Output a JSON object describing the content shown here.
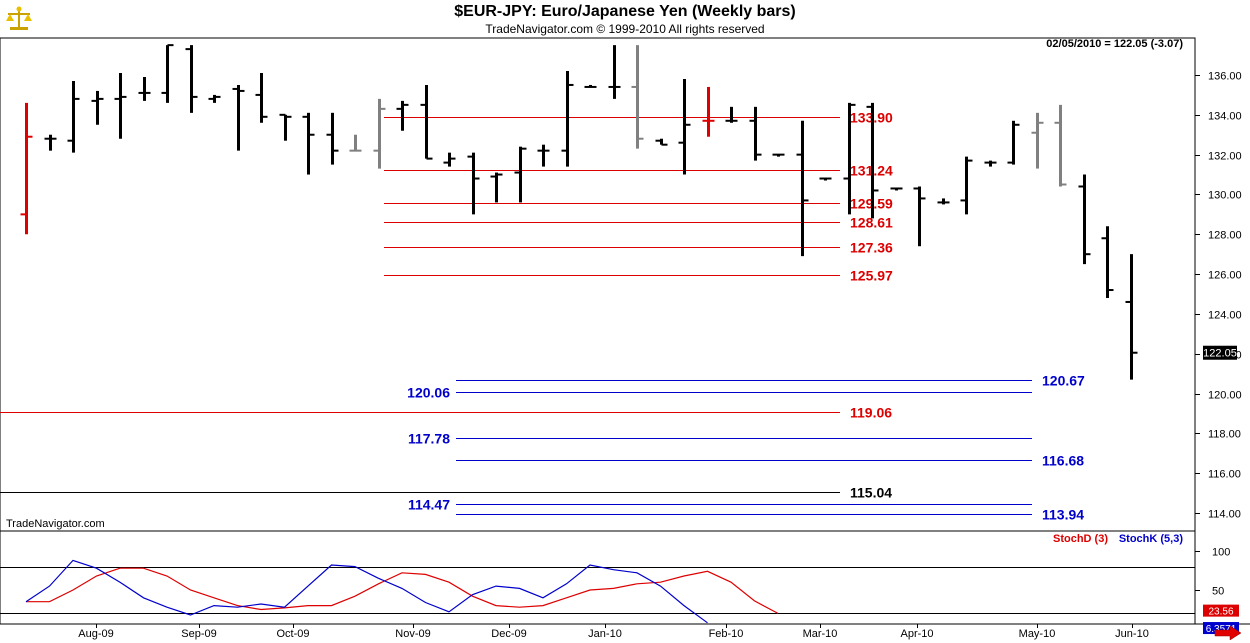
{
  "title": "$EUR-JPY:  Euro/Japanese Yen  (Weekly bars)",
  "subtitle": "TradeNavigator.com © 1999-2010 All rights reserved",
  "watermark": "TradeNavigator.com",
  "status_readout": "02/05/2010 = 122.05 (-3.07)",
  "colors": {
    "up_bar": "#000000",
    "gray_bar": "#808080",
    "red_bar": "#dd0000",
    "red_level": "#dd0000",
    "blue_level": "#0000cc",
    "black_level": "#000000",
    "stoch_d": "#dd0000",
    "stoch_k": "#0000cc",
    "background": "#ffffff"
  },
  "chart_data": [
    {
      "type": "line",
      "name": "price",
      "y_axis": {
        "min": 113.0,
        "max": 137.5,
        "ticks": [
          "114.00",
          "116.00",
          "118.00",
          "120.00",
          "122.00",
          "124.00",
          "126.00",
          "128.00",
          "130.00",
          "132.00",
          "134.00",
          "136.00"
        ]
      },
      "current_price_label": "122.05",
      "x_labels": [
        "Aug-09",
        "Sep-09",
        "Oct-09",
        "Nov-09",
        "Dec-09",
        "Jan-10",
        "Feb-10",
        "Mar-10",
        "Apr-10",
        "May-10",
        "Jun-10"
      ],
      "levels": [
        {
          "label": "133.90",
          "value": 133.9,
          "color": "red",
          "label_side": "right"
        },
        {
          "label": "131.24",
          "value": 131.24,
          "color": "red",
          "label_side": "right"
        },
        {
          "label": "129.59",
          "value": 129.59,
          "color": "red",
          "label_side": "right"
        },
        {
          "label": "128.61",
          "value": 128.61,
          "color": "red",
          "label_side": "right"
        },
        {
          "label": "127.36",
          "value": 127.36,
          "color": "red",
          "label_side": "right"
        },
        {
          "label": "125.97",
          "value": 125.97,
          "color": "red",
          "label_side": "right"
        },
        {
          "label": "120.67",
          "value": 120.67,
          "color": "blue",
          "label_side": "far-right"
        },
        {
          "label": "120.06",
          "value": 120.06,
          "color": "blue",
          "label_side": "left"
        },
        {
          "label": "119.06",
          "value": 119.06,
          "color": "red",
          "label_side": "right"
        },
        {
          "label": "117.78",
          "value": 117.78,
          "color": "blue",
          "label_side": "left"
        },
        {
          "label": "116.68",
          "value": 116.68,
          "color": "blue",
          "label_side": "far-right"
        },
        {
          "label": "115.04",
          "value": 115.04,
          "color": "black",
          "label_side": "right"
        },
        {
          "label": "114.47",
          "value": 114.47,
          "color": "blue",
          "label_side": "left"
        },
        {
          "label": "113.94",
          "value": 113.94,
          "color": "blue",
          "label_side": "far-right"
        }
      ],
      "bars": [
        {
          "h": 134.6,
          "l": 128.0,
          "o": 129.0,
          "c": 132.9,
          "color": "red"
        },
        {
          "h": 133.0,
          "l": 132.2,
          "o": 132.8,
          "c": 132.8,
          "color": "black"
        },
        {
          "h": 135.7,
          "l": 132.1,
          "o": 132.7,
          "c": 134.8,
          "color": "black"
        },
        {
          "h": 135.2,
          "l": 133.5,
          "o": 134.7,
          "c": 134.8,
          "color": "black"
        },
        {
          "h": 136.1,
          "l": 132.8,
          "o": 134.8,
          "c": 134.9,
          "color": "black"
        },
        {
          "h": 135.9,
          "l": 134.7,
          "o": 135.1,
          "c": 135.1,
          "color": "black"
        },
        {
          "h": 137.5,
          "l": 134.6,
          "o": 135.1,
          "c": 137.5,
          "color": "black"
        },
        {
          "h": 137.5,
          "l": 134.1,
          "o": 137.3,
          "c": 134.9,
          "color": "black"
        },
        {
          "h": 135.0,
          "l": 134.6,
          "o": 134.8,
          "c": 134.9,
          "color": "black"
        },
        {
          "h": 135.5,
          "l": 132.2,
          "o": 135.3,
          "c": 135.2,
          "color": "black"
        },
        {
          "h": 136.1,
          "l": 133.6,
          "o": 135.0,
          "c": 133.9,
          "color": "black"
        },
        {
          "h": 134.0,
          "l": 132.7,
          "o": 134.0,
          "c": 133.9,
          "color": "black"
        },
        {
          "h": 134.1,
          "l": 131.0,
          "o": 133.9,
          "c": 133.0,
          "color": "black"
        },
        {
          "h": 134.1,
          "l": 131.5,
          "o": 133.0,
          "c": 132.2,
          "color": "black"
        },
        {
          "h": 133.0,
          "l": 132.2,
          "o": 132.2,
          "c": 132.2,
          "color": "gray"
        },
        {
          "h": 134.8,
          "l": 131.3,
          "o": 132.2,
          "c": 134.3,
          "color": "gray"
        },
        {
          "h": 134.7,
          "l": 133.2,
          "o": 134.3,
          "c": 134.5,
          "color": "black"
        },
        {
          "h": 135.5,
          "l": 131.8,
          "o": 134.5,
          "c": 131.8,
          "color": "black"
        },
        {
          "h": 132.1,
          "l": 131.4,
          "o": 131.6,
          "c": 131.8,
          "color": "black"
        },
        {
          "h": 132.1,
          "l": 129.0,
          "o": 131.9,
          "c": 130.8,
          "color": "black"
        },
        {
          "h": 131.1,
          "l": 129.6,
          "o": 130.9,
          "c": 131.0,
          "color": "black"
        },
        {
          "h": 132.4,
          "l": 129.6,
          "o": 131.1,
          "c": 132.3,
          "color": "black"
        },
        {
          "h": 132.5,
          "l": 131.4,
          "o": 132.2,
          "c": 132.2,
          "color": "black"
        },
        {
          "h": 136.2,
          "l": 131.4,
          "o": 132.2,
          "c": 135.5,
          "color": "black"
        },
        {
          "h": 135.5,
          "l": 135.4,
          "o": 135.4,
          "c": 135.4,
          "color": "black"
        },
        {
          "h": 137.5,
          "l": 134.8,
          "o": 135.4,
          "c": 135.4,
          "color": "black"
        },
        {
          "h": 137.5,
          "l": 132.3,
          "o": 135.4,
          "c": 132.8,
          "color": "gray"
        },
        {
          "h": 132.8,
          "l": 132.5,
          "o": 132.7,
          "c": 132.5,
          "color": "black"
        },
        {
          "h": 135.8,
          "l": 131.0,
          "o": 132.6,
          "c": 133.5,
          "color": "black"
        },
        {
          "h": 135.4,
          "l": 132.9,
          "o": 133.7,
          "c": 133.7,
          "color": "red"
        },
        {
          "h": 134.4,
          "l": 133.6,
          "o": 133.7,
          "c": 133.7,
          "color": "black"
        },
        {
          "h": 134.4,
          "l": 131.7,
          "o": 133.7,
          "c": 132.0,
          "color": "black"
        },
        {
          "h": 132.0,
          "l": 131.9,
          "o": 132.0,
          "c": 132.0,
          "color": "black"
        },
        {
          "h": 133.7,
          "l": 126.9,
          "o": 132.0,
          "c": 129.7,
          "color": "black"
        },
        {
          "h": 130.8,
          "l": 130.7,
          "o": 130.8,
          "c": 130.8,
          "color": "black"
        },
        {
          "h": 134.6,
          "l": 129.0,
          "o": 130.8,
          "c": 134.5,
          "color": "black"
        },
        {
          "h": 134.6,
          "l": 128.8,
          "o": 134.4,
          "c": 130.2,
          "color": "black"
        },
        {
          "h": 130.3,
          "l": 130.2,
          "o": 130.3,
          "c": 130.3,
          "color": "black"
        },
        {
          "h": 130.4,
          "l": 127.4,
          "o": 130.3,
          "c": 129.8,
          "color": "black"
        },
        {
          "h": 129.8,
          "l": 129.5,
          "o": 129.6,
          "c": 129.6,
          "color": "black"
        },
        {
          "h": 131.9,
          "l": 129.0,
          "o": 129.7,
          "c": 131.7,
          "color": "black"
        },
        {
          "h": 131.7,
          "l": 131.4,
          "o": 131.6,
          "c": 131.6,
          "color": "black"
        },
        {
          "h": 133.7,
          "l": 131.5,
          "o": 131.6,
          "c": 133.5,
          "color": "black"
        },
        {
          "h": 134.1,
          "l": 131.3,
          "o": 133.1,
          "c": 133.6,
          "color": "gray"
        },
        {
          "h": 134.5,
          "l": 130.4,
          "o": 133.6,
          "c": 130.5,
          "color": "gray"
        },
        {
          "h": 131.0,
          "l": 126.5,
          "o": 130.4,
          "c": 127.0,
          "color": "black"
        },
        {
          "h": 128.4,
          "l": 124.8,
          "o": 127.8,
          "c": 125.2,
          "color": "black"
        },
        {
          "h": 127.0,
          "l": 120.7,
          "o": 124.6,
          "c": 122.05,
          "color": "black"
        }
      ]
    },
    {
      "type": "line",
      "name": "stochastic",
      "y_axis": {
        "min": 0,
        "max": 100,
        "ticks": [
          "100",
          "50"
        ]
      },
      "reference_lines": [
        80,
        20
      ],
      "value_labels": {
        "d": "23.56",
        "k": "6.3571"
      },
      "series": [
        {
          "name": "StochD (3)",
          "color": "red",
          "values": [
            35,
            35,
            50,
            68,
            78,
            78,
            68,
            50,
            40,
            30,
            25,
            27,
            30,
            30,
            42,
            58,
            72,
            70,
            60,
            42,
            30,
            28,
            30,
            40,
            50,
            52,
            58,
            60,
            68,
            74,
            60,
            36,
            20
          ]
        },
        {
          "name": "StochK (5,3)",
          "color": "blue",
          "values": [
            35,
            55,
            88,
            78,
            60,
            40,
            28,
            18,
            30,
            28,
            32,
            28,
            55,
            82,
            80,
            65,
            52,
            34,
            22,
            44,
            55,
            52,
            40,
            58,
            82,
            76,
            72,
            55,
            30,
            8
          ]
        }
      ]
    }
  ]
}
